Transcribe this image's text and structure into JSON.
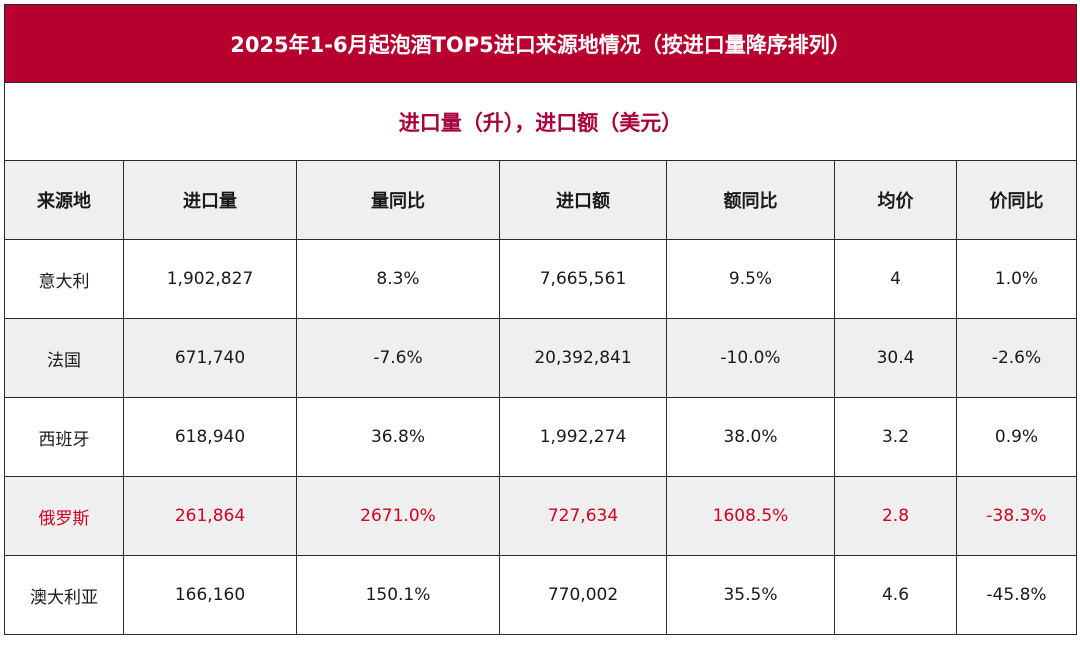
{
  "table": {
    "title": "2025年1-6月起泡酒TOP5进口来源地情况（按进口量降序排列）",
    "subtitle": "进口量（升），进口额（美元）",
    "headers": [
      "来源地",
      "进口量",
      "量同比",
      "进口额",
      "额同比",
      "均价",
      "价同比"
    ],
    "rows": [
      {
        "cells": [
          "意大利",
          "1,902,827",
          "8.3%",
          "7,665,561",
          "9.5%",
          "4",
          "1.0%"
        ],
        "highlight": false
      },
      {
        "cells": [
          "法国",
          "671,740",
          "-7.6%",
          "20,392,841",
          "-10.0%",
          "30.4",
          "-2.6%"
        ],
        "highlight": false
      },
      {
        "cells": [
          "西班牙",
          "618,940",
          "36.8%",
          "1,992,274",
          "38.0%",
          "3.2",
          "0.9%"
        ],
        "highlight": false
      },
      {
        "cells": [
          "俄罗斯",
          "261,864",
          "2671.0%",
          "727,634",
          "1608.5%",
          "2.8",
          "-38.3%"
        ],
        "highlight": true
      },
      {
        "cells": [
          "澳大利亚",
          "166,160",
          "150.1%",
          "770,002",
          "35.5%",
          "4.6",
          "-45.8%"
        ],
        "highlight": false
      }
    ],
    "colors": {
      "title_bg": "#b8002e",
      "subtitle_text": "#a8003a",
      "highlight_text": "#d4001f",
      "shade_bg": "#efefef"
    }
  }
}
